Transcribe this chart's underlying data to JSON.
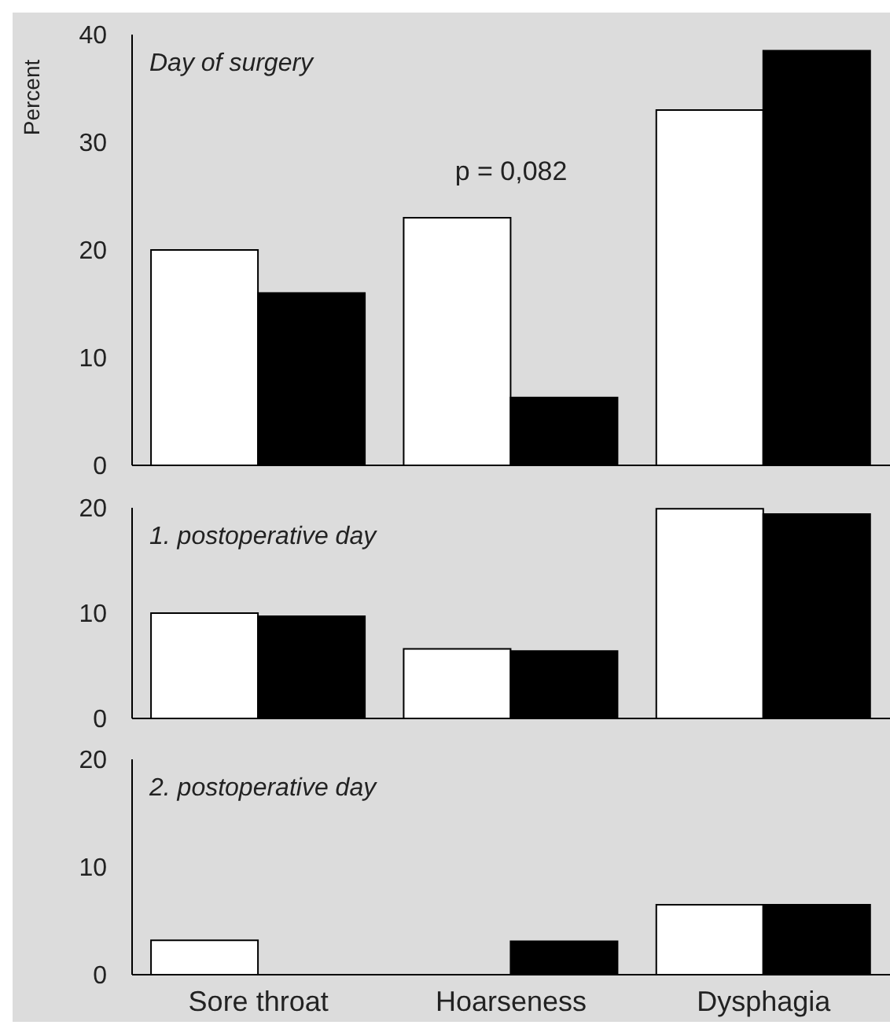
{
  "chart_data": [
    {
      "type": "bar",
      "title": "Day of surgery",
      "ylabel": "Percent",
      "categories": [
        "Sore throat",
        "Hoarseness",
        "Dysphagia"
      ],
      "series": [
        {
          "color": "#ffffff",
          "values": [
            20,
            23,
            33
          ]
        },
        {
          "color": "#000000",
          "values": [
            16,
            6.3,
            38.5
          ]
        }
      ],
      "ylim": [
        0,
        40
      ],
      "yticks": [
        0,
        10,
        20,
        30,
        40
      ],
      "tick_labels": "y",
      "annotations": [
        {
          "text": "p = 0,082",
          "x": "Hoarseness",
          "y": 23
        }
      ]
    },
    {
      "type": "bar",
      "title": "1. postoperative day",
      "categories": [
        "Sore throat",
        "Hoarseness",
        "Dysphagia"
      ],
      "series": [
        {
          "color": "#ffffff",
          "values": [
            10,
            6.6,
            19.9
          ]
        },
        {
          "color": "#000000",
          "values": [
            9.7,
            6.4,
            19.4
          ]
        }
      ],
      "ylim": [
        0,
        20
      ],
      "yticks": [
        0,
        10,
        20
      ],
      "tick_labels": "y"
    },
    {
      "type": "bar",
      "title": "2. postoperative day",
      "categories": [
        "Sore throat",
        "Hoarseness",
        "Dysphagia"
      ],
      "series": [
        {
          "color": "#ffffff",
          "values": [
            3.2,
            0,
            6.5
          ]
        },
        {
          "color": "#000000",
          "values": [
            0,
            3.1,
            6.5
          ]
        }
      ],
      "ylim": [
        0,
        20
      ],
      "yticks": [
        0,
        10,
        20
      ]
    }
  ]
}
